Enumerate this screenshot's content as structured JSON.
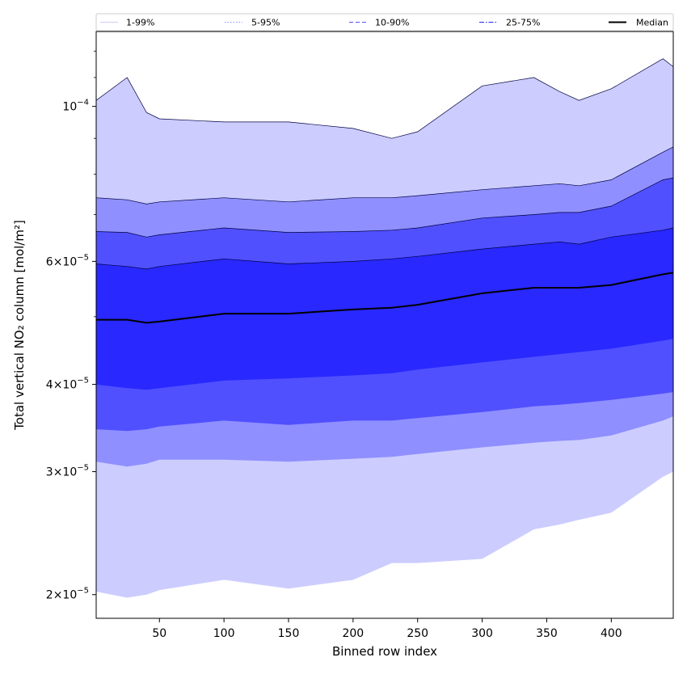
{
  "chart_data": {
    "type": "area",
    "xlabel": "Binned row index",
    "ylabel": "Total vertical NO₂ column [mol/m²]",
    "y_scale": "log",
    "xlim": [
      1,
      448
    ],
    "ylim": [
      1.85e-05,
      0.000128
    ],
    "x_ticks": [
      50,
      100,
      150,
      200,
      250,
      300,
      350,
      400
    ],
    "y_ticks": [
      {
        "value": 2e-05,
        "mantissa": "2",
        "exponent": "−5"
      },
      {
        "value": 3e-05,
        "mantissa": "3",
        "exponent": "−5"
      },
      {
        "value": 4e-05,
        "mantissa": "4",
        "exponent": "−5"
      },
      {
        "value": 6e-05,
        "mantissa": "6",
        "exponent": "−5"
      },
      {
        "value": 0.0001,
        "mantissa": "",
        "exponent": "−4"
      }
    ],
    "x": [
      1,
      25,
      40,
      50,
      100,
      150,
      200,
      230,
      250,
      300,
      340,
      360,
      375,
      400,
      440,
      448
    ],
    "bands": [
      {
        "name": "1-99%",
        "color": "#ccccff",
        "lower": [
          2.02e-05,
          1.98e-05,
          2e-05,
          2.03e-05,
          2.1e-05,
          2.04e-05,
          2.1e-05,
          2.22e-05,
          2.22e-05,
          2.25e-05,
          2.48e-05,
          2.52e-05,
          2.56e-05,
          2.62e-05,
          2.95e-05,
          3e-05
        ],
        "upper": [
          0.000102,
          0.00011,
          9.8e-05,
          9.6e-05,
          9.5e-05,
          9.5e-05,
          9.3e-05,
          9e-05,
          9.2e-05,
          0.000107,
          0.00011,
          0.000105,
          0.000102,
          0.000106,
          0.000117,
          0.000114
        ]
      },
      {
        "name": "5-95%",
        "color": "#8f8fff",
        "lower": [
          3.1e-05,
          3.05e-05,
          3.08e-05,
          3.12e-05,
          3.12e-05,
          3.1e-05,
          3.13e-05,
          3.15e-05,
          3.18e-05,
          3.25e-05,
          3.3e-05,
          3.32e-05,
          3.33e-05,
          3.38e-05,
          3.55e-05,
          3.6e-05
        ],
        "upper": [
          7.4e-05,
          7.35e-05,
          7.25e-05,
          7.3e-05,
          7.4e-05,
          7.3e-05,
          7.4e-05,
          7.4e-05,
          7.45e-05,
          7.6e-05,
          7.7e-05,
          7.75e-05,
          7.7e-05,
          7.85e-05,
          8.6e-05,
          8.75e-05
        ]
      },
      {
        "name": "10-90%",
        "color": "#5050ff",
        "lower": [
          3.45e-05,
          3.43e-05,
          3.45e-05,
          3.48e-05,
          3.55e-05,
          3.5e-05,
          3.55e-05,
          3.55e-05,
          3.58e-05,
          3.65e-05,
          3.72e-05,
          3.74e-05,
          3.76e-05,
          3.8e-05,
          3.88e-05,
          3.9e-05
        ],
        "upper": [
          6.62e-05,
          6.6e-05,
          6.5e-05,
          6.55e-05,
          6.7e-05,
          6.6e-05,
          6.62e-05,
          6.65e-05,
          6.7e-05,
          6.92e-05,
          7e-05,
          7.05e-05,
          7.05e-05,
          7.2e-05,
          7.85e-05,
          7.9e-05
        ]
      },
      {
        "name": "25-75%",
        "color": "#2828ff",
        "lower": [
          4e-05,
          3.95e-05,
          3.93e-05,
          3.95e-05,
          4.05e-05,
          4.08e-05,
          4.12e-05,
          4.15e-05,
          4.2e-05,
          4.3e-05,
          4.38e-05,
          4.42e-05,
          4.45e-05,
          4.5e-05,
          4.62e-05,
          4.65e-05
        ],
        "upper": [
          5.95e-05,
          5.9e-05,
          5.85e-05,
          5.9e-05,
          6.05e-05,
          5.95e-05,
          6e-05,
          6.05e-05,
          6.1e-05,
          6.25e-05,
          6.35e-05,
          6.4e-05,
          6.35e-05,
          6.5e-05,
          6.65e-05,
          6.7e-05
        ]
      }
    ],
    "median": {
      "name": "Median",
      "color": "#000000",
      "values": [
        4.95e-05,
        4.95e-05,
        4.9e-05,
        4.92e-05,
        5.05e-05,
        5.05e-05,
        5.12e-05,
        5.15e-05,
        5.2e-05,
        5.4e-05,
        5.5e-05,
        5.5e-05,
        5.5e-05,
        5.55e-05,
        5.75e-05,
        5.78e-05
      ]
    },
    "legend": {
      "position": "top",
      "entries": [
        {
          "label": "1-99%",
          "color": "#ccccff",
          "style": "solid"
        },
        {
          "label": "5-95%",
          "color": "#8f8fff",
          "style": "dotted"
        },
        {
          "label": "10-90%",
          "color": "#5050ff",
          "style": "dashed"
        },
        {
          "label": "25-75%",
          "color": "#2828ff",
          "style": "dashdot"
        },
        {
          "label": "Median",
          "color": "#000000",
          "style": "solid-bold"
        }
      ]
    },
    "grid": false
  }
}
